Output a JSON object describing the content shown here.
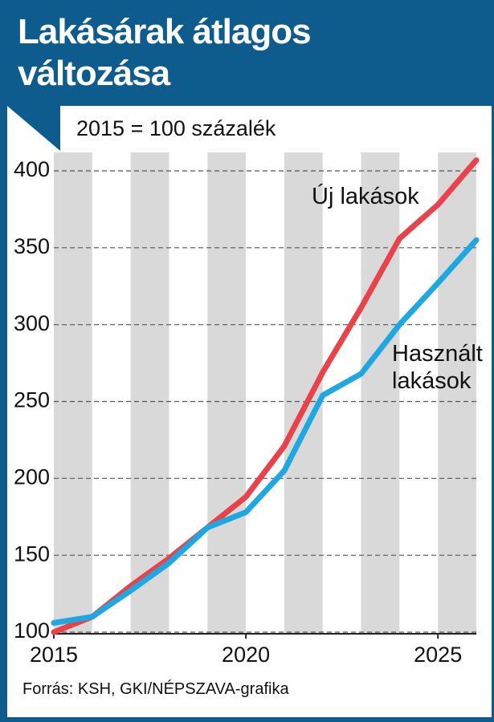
{
  "chart_data": {
    "type": "line",
    "title": "Lakásárak átlagos változása",
    "subtitle": "2015 = 100 százalék",
    "source": "Forrás: KSH, GKI/NÉPSZAVA-grafika",
    "x": [
      2015,
      2016,
      2017,
      2018,
      2019,
      2020,
      2021,
      2022,
      2023,
      2024,
      2025,
      2026
    ],
    "series": [
      {
        "name": "Új lakások",
        "color": "#e8434b",
        "values": [
          100,
          110,
          130,
          148,
          168,
          188,
          221,
          269,
          311,
          356,
          378,
          407
        ]
      },
      {
        "name": "Használt lakások",
        "color": "#1ea7e1",
        "values": [
          106,
          110,
          127,
          145,
          168,
          178,
          205,
          254,
          268,
          300,
          327,
          355
        ]
      }
    ],
    "xlim": [
      2015,
      2026
    ],
    "xticks": [
      2015,
      2020,
      2025
    ],
    "ylim": [
      100,
      400
    ],
    "yticks": [
      100,
      150,
      200,
      250,
      300,
      350,
      400
    ],
    "grid": true
  }
}
